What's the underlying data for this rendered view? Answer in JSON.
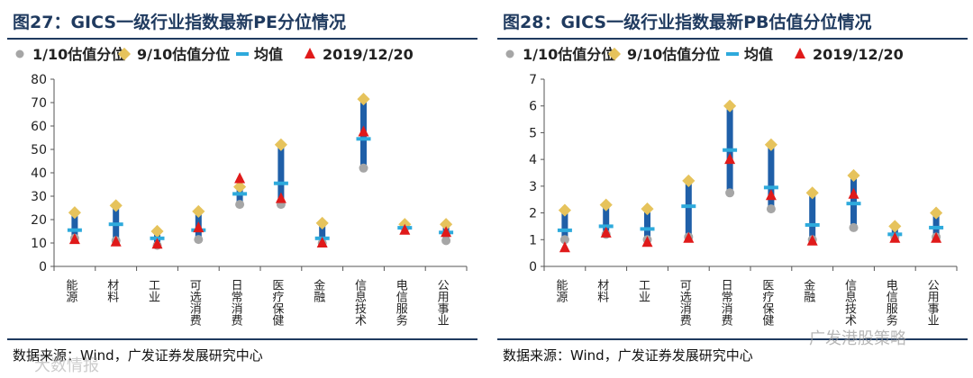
{
  "charts": [
    {
      "title": "图27：GICS一级行业指数最新PE分位情况",
      "source": "数据来源：Wind，广发证券发展研究中心",
      "chart_data": {
        "type": "scatter",
        "legend": [
          "1/10估值分位",
          "9/10估值分位",
          "均值",
          "2019/12/20"
        ],
        "legend_position": "top",
        "categories": [
          "能源",
          "材料",
          "工业",
          "可选消费",
          "日常消费",
          "医疗保健",
          "金融",
          "信息技术",
          "电信服务",
          "公用事业"
        ],
        "ylim": [
          0,
          80
        ],
        "yticks": [
          0,
          10,
          20,
          30,
          40,
          50,
          60,
          70,
          80
        ],
        "series": [
          {
            "name": "1/10估值分位",
            "values": [
              12,
              11,
              9,
              11.5,
              26.5,
              26.5,
              10,
              42,
              16.5,
              11
            ]
          },
          {
            "name": "9/10估值分位",
            "values": [
              23,
              26,
              15,
              23.5,
              34,
              52,
              18.5,
              71.5,
              18,
              18
            ]
          },
          {
            "name": "均值",
            "values": [
              15.5,
              18,
              12,
              15.5,
              31,
              35.5,
              12,
              54.5,
              16.5,
              14.5
            ]
          },
          {
            "name": "2019/12/20",
            "values": [
              11.5,
              10.5,
              9.5,
              16.5,
              37.5,
              29,
              10,
              57.5,
              15.5,
              14.5
            ]
          }
        ]
      }
    },
    {
      "title": "图28：GICS一级行业指数最新PB估值分位情况",
      "source": "数据来源：Wind，广发证券发展研究中心",
      "chart_data": {
        "type": "scatter",
        "legend": [
          "1/10估值分位",
          "9/10估值分位",
          "均值",
          "2019/12/20"
        ],
        "legend_position": "top",
        "categories": [
          "能源",
          "材料",
          "工业",
          "可选消费",
          "日常消费",
          "医疗保健",
          "金融",
          "信息技术",
          "电信服务",
          "公用事业"
        ],
        "ylim": [
          0,
          7
        ],
        "yticks": [
          0,
          1,
          2,
          3,
          4,
          5,
          6,
          7
        ],
        "series": [
          {
            "name": "1/10估值分位",
            "values": [
              1.0,
              1.2,
              1.0,
              1.1,
              2.75,
              2.15,
              1.0,
              1.45,
              1.1,
              1.1
            ]
          },
          {
            "name": "9/10估值分位",
            "values": [
              2.1,
              2.3,
              2.15,
              3.2,
              6.0,
              4.55,
              2.75,
              3.4,
              1.5,
              2.0
            ]
          },
          {
            "name": "均值",
            "values": [
              1.35,
              1.5,
              1.4,
              2.25,
              4.35,
              2.95,
              1.55,
              2.35,
              1.2,
              1.45
            ]
          },
          {
            "name": "2019/12/20",
            "values": [
              0.7,
              1.25,
              0.9,
              1.05,
              4.0,
              2.65,
              0.95,
              2.7,
              1.05,
              1.05
            ]
          }
        ]
      }
    }
  ],
  "colors": {
    "range_bar": "#1f5fa8",
    "p10_marker": "#a6a6a6",
    "p90_marker": "#e6c35c",
    "mean_marker": "#2eaadc",
    "latest_marker": "#e01a1a",
    "axis": "#555555",
    "title": "#1f3a5f"
  },
  "watermarks": {
    "left": "大数情报",
    "right": "广发港股策略"
  }
}
